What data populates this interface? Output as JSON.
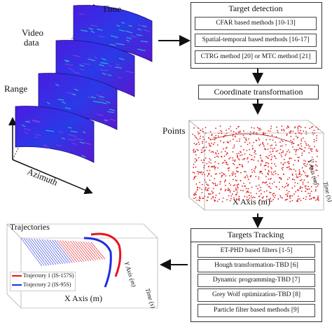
{
  "video": {
    "label_line1": "Video",
    "label_line2": "data",
    "time_label": "Time",
    "range_label": "Range",
    "azimuth_label": "Azimuth"
  },
  "detection": {
    "title": "Target detection",
    "items": [
      "CFAR based methods [10-13]",
      "Spatial-temporal based methods [16-17]",
      "CTRG method [20] or MTC method [21]"
    ]
  },
  "coordinate": {
    "title": "Coordinate transformation",
    "points_label": "Points",
    "x_axis_label": "X Axis (m)",
    "y_axis_label": "Y Axis (m)",
    "time_axis_label": "Time (s)"
  },
  "tracking": {
    "title": "Targets Tracking",
    "items": [
      "ET-PHD based filters [1-5]",
      "Hough transformation-TBD    [6]",
      "Dynamic programming-TBD    [7]",
      "Grey Wolf optimization-TBD    [8]",
      "Particle filter based methods    [9]"
    ]
  },
  "trajectories": {
    "label": "Trajectories",
    "legend": [
      {
        "name": "Trajectory 1 (IS-157S)",
        "color": "#e8141c"
      },
      {
        "name": "Trajectory 2 (IS-95S)",
        "color": "#1c2ee0"
      }
    ],
    "x_axis_label": "X Axis (m)",
    "y_axis_label": "Y Axis (m)",
    "time_axis_label": "Time (s)"
  },
  "colors": {
    "radar_base": "#3320d8",
    "radar_highlight": "#2ad0c8",
    "points": "#e02020",
    "arrow": "#111111"
  }
}
